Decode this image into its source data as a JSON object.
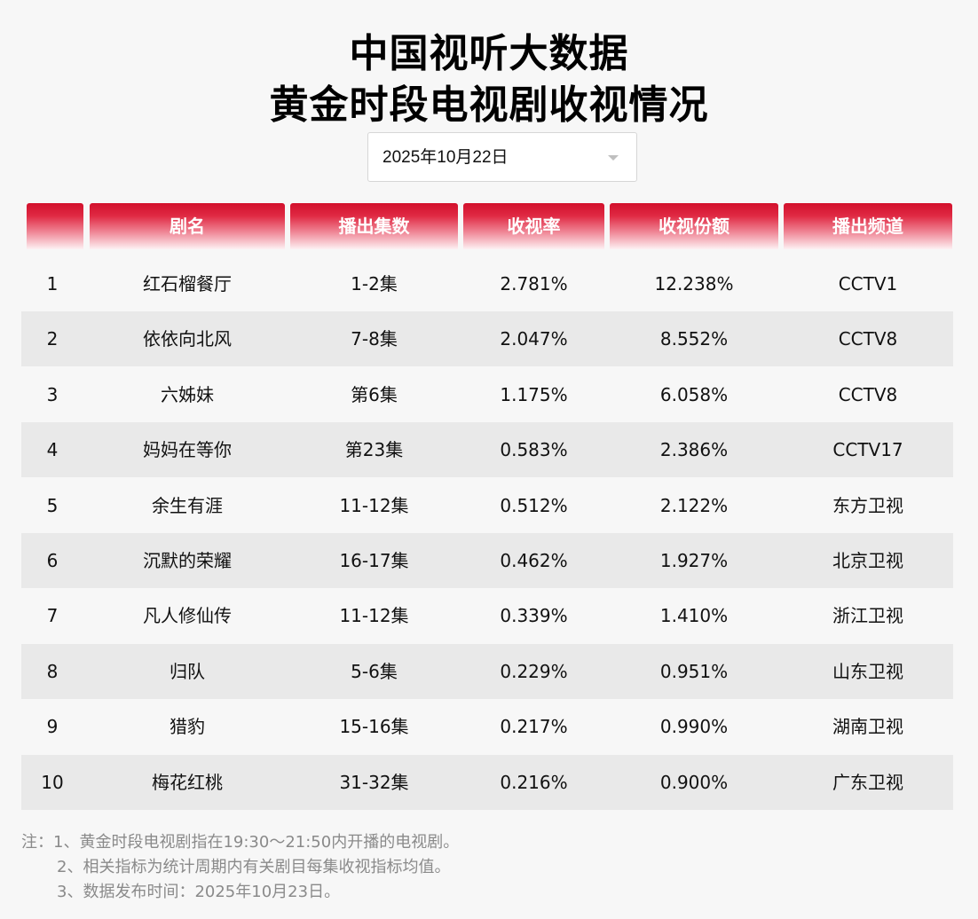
{
  "header": {
    "title_line1": "中国视听大数据",
    "title_line2": "黄金时段电视剧收视情况"
  },
  "date_select": {
    "value": "2025年10月22日",
    "icon": "chevron-down-icon"
  },
  "table": {
    "columns": [
      "",
      "剧名",
      "播出集数",
      "收视率",
      "收视份额",
      "播出频道"
    ],
    "rows": [
      {
        "rank": "1",
        "name": "红石榴餐厅",
        "episodes": "1-2集",
        "rating": "2.781%",
        "share": "12.238%",
        "channel": "CCTV1"
      },
      {
        "rank": "2",
        "name": "依依向北风",
        "episodes": "7-8集",
        "rating": "2.047%",
        "share": "8.552%",
        "channel": "CCTV8"
      },
      {
        "rank": "3",
        "name": "六姊妹",
        "episodes": "第6集",
        "rating": "1.175%",
        "share": "6.058%",
        "channel": "CCTV8"
      },
      {
        "rank": "4",
        "name": "妈妈在等你",
        "episodes": "第23集",
        "rating": "0.583%",
        "share": "2.386%",
        "channel": "CCTV17"
      },
      {
        "rank": "5",
        "name": "余生有涯",
        "episodes": "11-12集",
        "rating": "0.512%",
        "share": "2.122%",
        "channel": "东方卫视"
      },
      {
        "rank": "6",
        "name": "沉默的荣耀",
        "episodes": "16-17集",
        "rating": "0.462%",
        "share": "1.927%",
        "channel": "北京卫视"
      },
      {
        "rank": "7",
        "name": "凡人修仙传",
        "episodes": "11-12集",
        "rating": "0.339%",
        "share": "1.410%",
        "channel": "浙江卫视"
      },
      {
        "rank": "8",
        "name": "归队",
        "episodes": "5-6集",
        "rating": "0.229%",
        "share": "0.951%",
        "channel": "山东卫视"
      },
      {
        "rank": "9",
        "name": "猎豹",
        "episodes": "15-16集",
        "rating": "0.217%",
        "share": "0.990%",
        "channel": "湖南卫视"
      },
      {
        "rank": "10",
        "name": "梅花红桃",
        "episodes": "31-32集",
        "rating": "0.216%",
        "share": "0.900%",
        "channel": "广东卫视"
      }
    ]
  },
  "notes": {
    "line1": "注：1、黄金时段电视剧指在19:30～21:50内开播的电视剧。",
    "line2": "2、相关指标为统计周期内有关剧目每集收视指标均值。",
    "line3": "3、数据发布时间：2025年10月23日。"
  },
  "colors": {
    "header_red": "#d20f2b",
    "row_alt": "#e9e9e9",
    "background": "#f7f7f7"
  }
}
